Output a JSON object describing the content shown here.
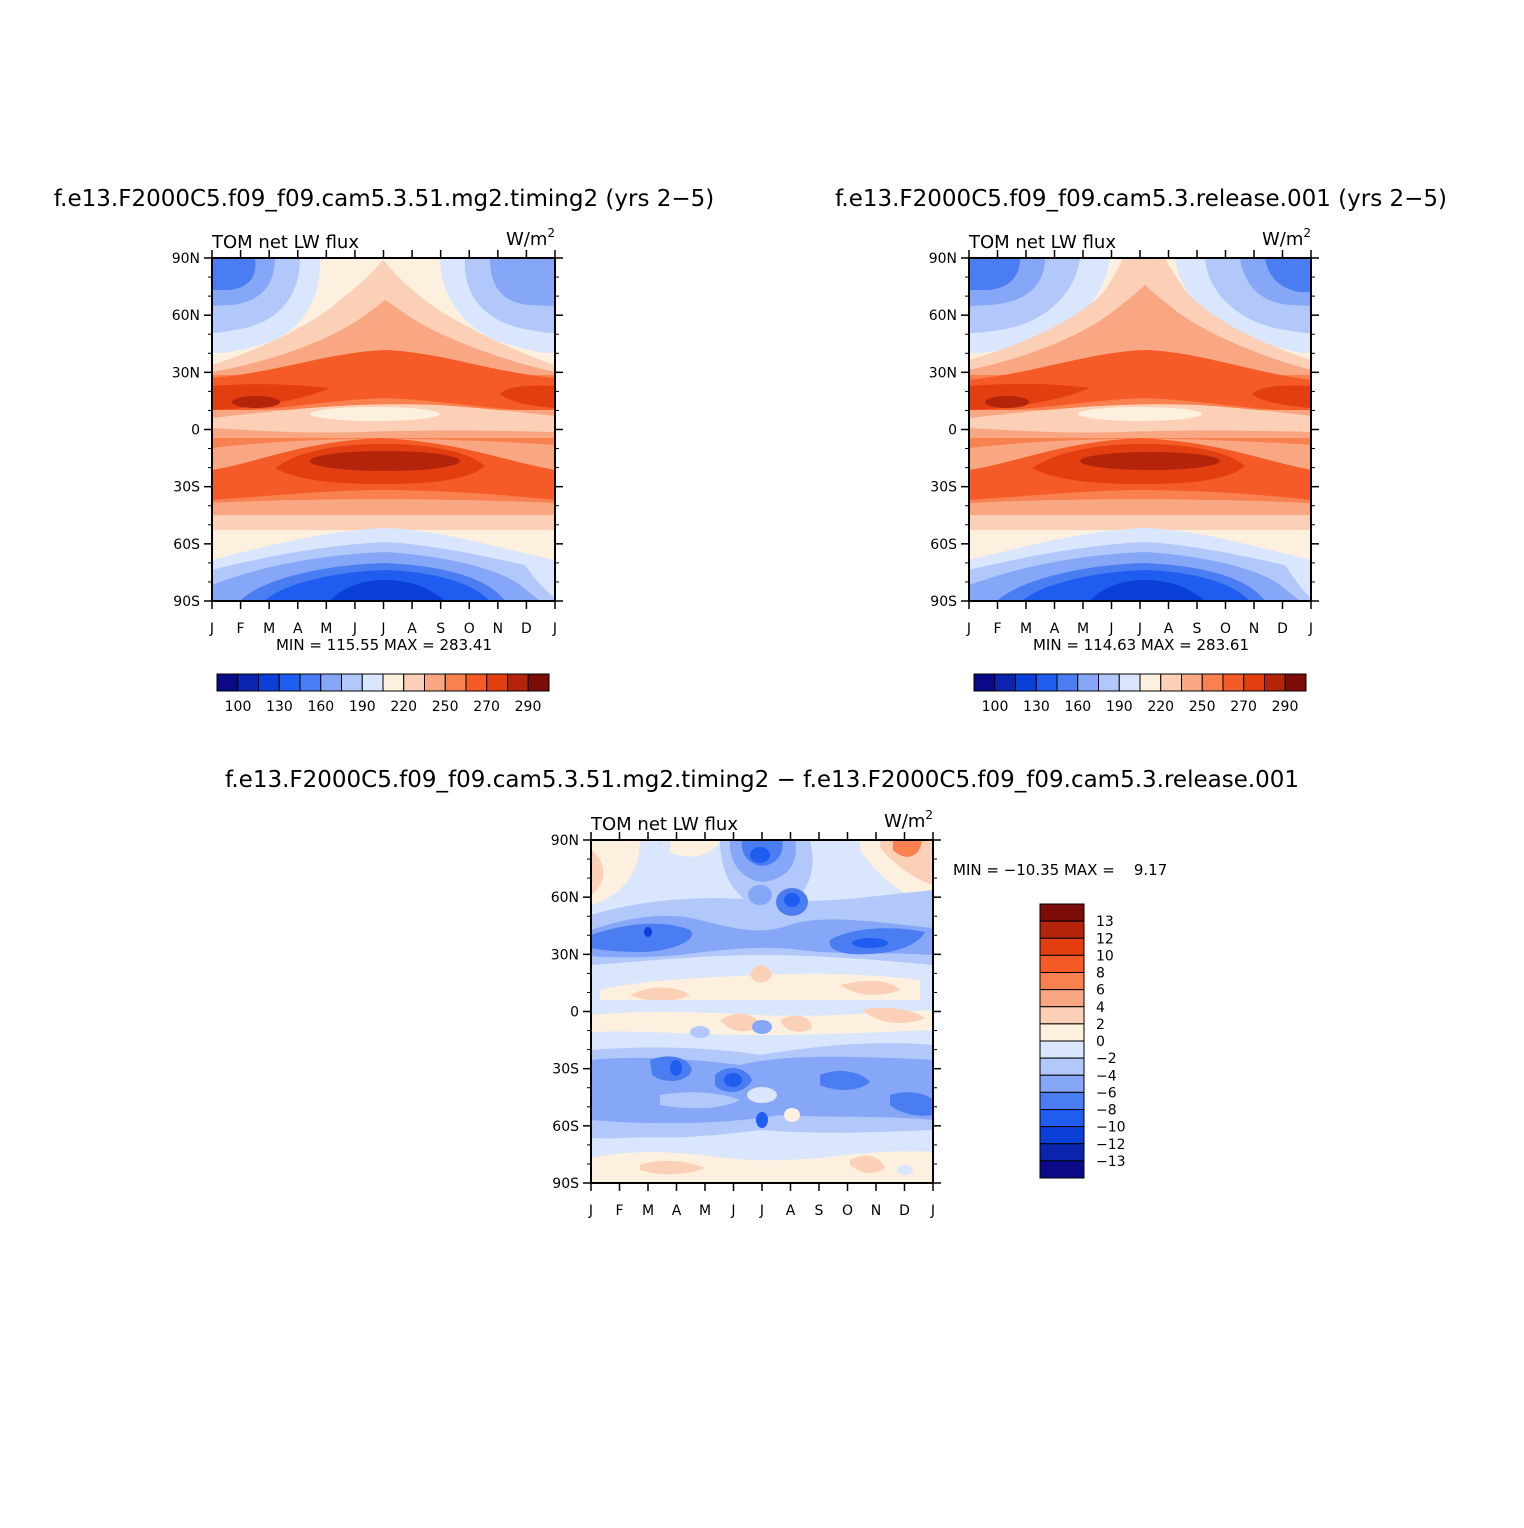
{
  "chart_data": [
    {
      "type": "heatmap",
      "title": "f.e13.F2000C5.f09_f09.cam5.3.51.mg2.timing2 (yrs 2−5)",
      "field_label": "TOM net LW flux",
      "units_base": "W/m",
      "units_exp": "2",
      "x_ticks": [
        "J",
        "F",
        "M",
        "A",
        "M",
        "J",
        "J",
        "A",
        "S",
        "O",
        "N",
        "D",
        "J"
      ],
      "y_ticks": [
        "90N",
        "60N",
        "30N",
        "0",
        "30S",
        "60S",
        "90S"
      ],
      "xlim": [
        0,
        12
      ],
      "ylim": [
        -90,
        90
      ],
      "min_max_text": "MIN = 115.55 MAX = 283.41",
      "min": 115.55,
      "max": 283.41,
      "levels": [
        100,
        110,
        120,
        130,
        140,
        150,
        160,
        170,
        180,
        190,
        200,
        210,
        220,
        230,
        240,
        250,
        260,
        270,
        280,
        290
      ],
      "colorbar_labels": [
        "100",
        "130",
        "160",
        "190",
        "220",
        "250",
        "270",
        "290"
      ],
      "colorbar_colors": [
        "#0a0a87",
        "#0b24ad",
        "#0a3fd8",
        "#1e5df0",
        "#4a7df2",
        "#86a7f7",
        "#b3c8fa",
        "#d9e6fd",
        "#fdf0df",
        "#fbd0b7",
        "#f9a783",
        "#f9804f",
        "#f55b27",
        "#e23e10",
        "#b3240b",
        "#7b0d09"
      ]
    },
    {
      "type": "heatmap",
      "title": "f.e13.F2000C5.f09_f09.cam5.3.release.001 (yrs 2−5)",
      "field_label": "TOM net LW flux",
      "units_base": "W/m",
      "units_exp": "2",
      "x_ticks": [
        "J",
        "F",
        "M",
        "A",
        "M",
        "J",
        "J",
        "A",
        "S",
        "O",
        "N",
        "D",
        "J"
      ],
      "y_ticks": [
        "90N",
        "60N",
        "30N",
        "0",
        "30S",
        "60S",
        "90S"
      ],
      "xlim": [
        0,
        12
      ],
      "ylim": [
        -90,
        90
      ],
      "min_max_text": "MIN = 114.63 MAX = 283.61",
      "min": 114.63,
      "max": 283.61,
      "levels": [
        100,
        110,
        120,
        130,
        140,
        150,
        160,
        170,
        180,
        190,
        200,
        210,
        220,
        230,
        240,
        250,
        260,
        270,
        280,
        290
      ],
      "colorbar_labels": [
        "100",
        "130",
        "160",
        "190",
        "220",
        "250",
        "270",
        "290"
      ],
      "colorbar_colors": [
        "#0a0a87",
        "#0b24ad",
        "#0a3fd8",
        "#1e5df0",
        "#4a7df2",
        "#86a7f7",
        "#b3c8fa",
        "#d9e6fd",
        "#fdf0df",
        "#fbd0b7",
        "#f9a783",
        "#f9804f",
        "#f55b27",
        "#e23e10",
        "#b3240b",
        "#7b0d09"
      ]
    },
    {
      "type": "heatmap",
      "title": "f.e13.F2000C5.f09_f09.cam5.3.51.mg2.timing2 − f.e13.F2000C5.f09_f09.cam5.3.release.001",
      "field_label": "TOM net LW flux",
      "units_base": "W/m",
      "units_exp": "2",
      "x_ticks": [
        "J",
        "F",
        "M",
        "A",
        "M",
        "J",
        "J",
        "A",
        "S",
        "O",
        "N",
        "D",
        "J"
      ],
      "y_ticks": [
        "90N",
        "60N",
        "30N",
        "0",
        "30S",
        "60S",
        "90S"
      ],
      "xlim": [
        0,
        12
      ],
      "ylim": [
        -90,
        90
      ],
      "min_max_text": "MIN = −10.35 MAX =    9.17",
      "min": -10.35,
      "max": 9.17,
      "levels": [
        -13,
        -12,
        -10,
        -8,
        -6,
        -4,
        -2,
        0,
        2,
        4,
        6,
        8,
        10,
        12,
        13
      ],
      "colorbar_labels": [
        "13",
        "12",
        "10",
        "8",
        "6",
        "4",
        "2",
        "0",
        "−2",
        "−4",
        "−6",
        "−8",
        "−10",
        "−12",
        "−13"
      ],
      "colorbar_colors": [
        "#7b0d09",
        "#b3240b",
        "#e23e10",
        "#f55b27",
        "#f9804f",
        "#f9a783",
        "#fbd0b7",
        "#fdf0df",
        "#d9e6fd",
        "#b3c8fa",
        "#86a7f7",
        "#4a7df2",
        "#1e5df0",
        "#0a3fd8",
        "#0b24ad",
        "#0a0a87"
      ]
    }
  ]
}
